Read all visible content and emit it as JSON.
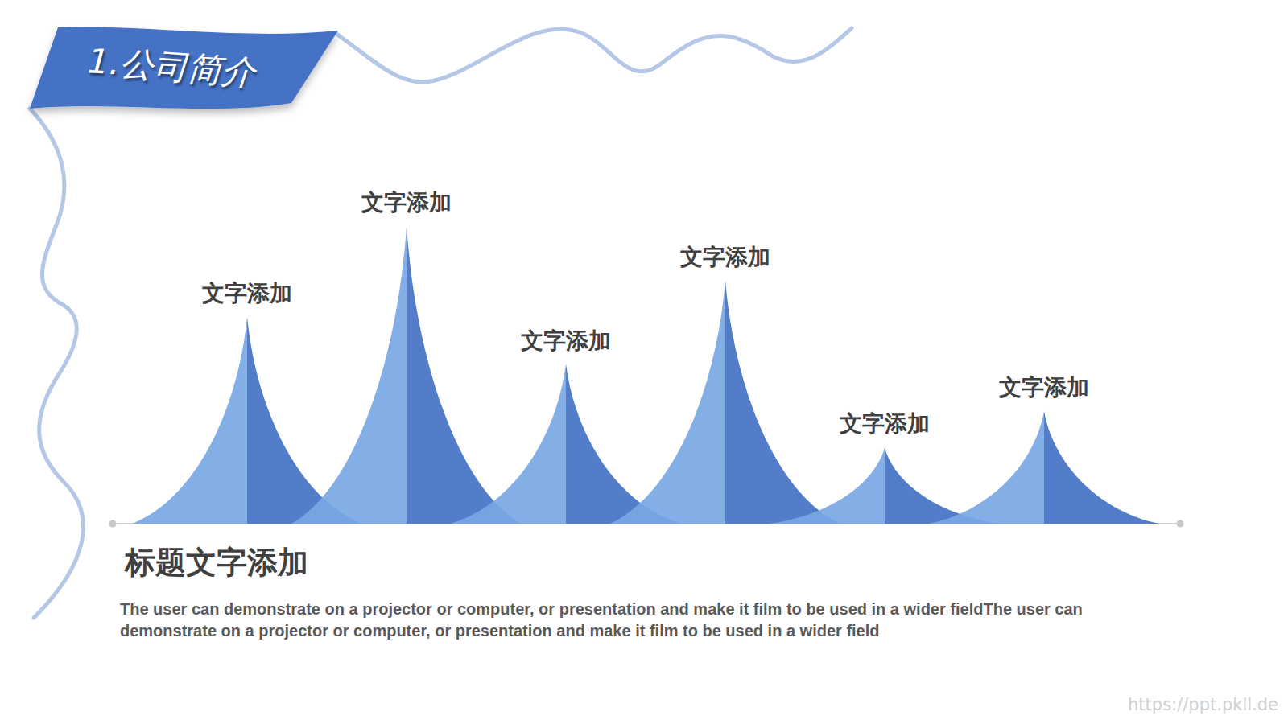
{
  "chart_data": {
    "type": "peak",
    "categories": [
      "文字添加",
      "文字添加",
      "文字添加",
      "文字添加",
      "文字添加",
      "文字添加"
    ],
    "values": [
      57,
      82,
      44,
      67,
      21,
      31
    ],
    "ylim": [
      0,
      100
    ],
    "color": "#4472c4",
    "tick_labels": false
  },
  "page": {
    "section_title": "1.公司简介",
    "heading": "标题文字添加",
    "body": "The user can demonstrate on a projector or computer, or presentation and make it film to be used in a wider fieldThe user can demonstrate on a projector or computer, or presentation and make it film to be used in a wider field",
    "watermark": "https://ppt.pkll.de"
  }
}
